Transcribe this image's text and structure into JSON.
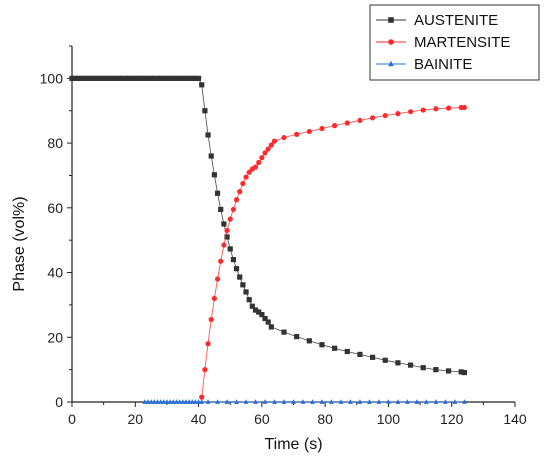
{
  "chart_data": {
    "type": "line",
    "xlabel": "Time (s)",
    "ylabel": "Phase (vol%)",
    "xlim": [
      0,
      140
    ],
    "ylim": [
      0,
      110
    ],
    "xticks": [
      0,
      20,
      40,
      60,
      80,
      100,
      120,
      140
    ],
    "yticks": [
      0,
      20,
      40,
      60,
      80,
      100
    ],
    "grid": false,
    "legend_position": "top-right",
    "series": [
      {
        "name": "AUSTENITE",
        "color": "#333333",
        "marker": "square",
        "x": [
          0,
          1,
          2,
          3,
          4,
          5,
          6,
          7,
          8,
          9,
          10,
          11,
          12,
          13,
          14,
          15,
          16,
          17,
          18,
          19,
          20,
          21,
          22,
          23,
          24,
          25,
          26,
          27,
          28,
          29,
          30,
          31,
          32,
          33,
          34,
          35,
          36,
          37,
          38,
          39,
          40,
          41,
          42,
          43,
          44,
          45,
          46,
          47,
          48,
          49,
          50,
          51,
          52,
          53,
          54,
          55,
          56,
          57,
          58,
          59,
          60,
          61,
          62,
          63,
          67,
          71,
          75,
          79,
          83,
          87,
          91,
          95,
          99,
          103,
          107,
          111,
          115,
          119,
          123,
          124
        ],
        "y": [
          100,
          100,
          100,
          100,
          100,
          100,
          100,
          100,
          100,
          100,
          100,
          100,
          100,
          100,
          100,
          100,
          100,
          100,
          100,
          100,
          100,
          100,
          100,
          100,
          100,
          100,
          100,
          100,
          100,
          100,
          100,
          100,
          100,
          100,
          100,
          100,
          100,
          100,
          100,
          100,
          100,
          98,
          90,
          82.5,
          76,
          70.2,
          64.5,
          59.5,
          55,
          51,
          47.3,
          44,
          41.2,
          38.6,
          36.2,
          34,
          31.6,
          29.6,
          28.4,
          27.8,
          27,
          25.8,
          24.7,
          23.2,
          21.6,
          20.2,
          18.9,
          17.7,
          16.6,
          15.6,
          14.7,
          13.8,
          12.9,
          12.1,
          11.4,
          10.6,
          10,
          9.6,
          9.3,
          9.1
        ],
        "x_alt": [],
        "note": ""
      },
      {
        "name": "MARTENSITE",
        "color": "#ff2a2a",
        "marker": "circle",
        "x": [
          41,
          42,
          43,
          44,
          45,
          46,
          47,
          48,
          49,
          50,
          51,
          52,
          53,
          54,
          55,
          56,
          57,
          58,
          59,
          60,
          61,
          62,
          63,
          64,
          67,
          71,
          75,
          79,
          83,
          87,
          91,
          95,
          99,
          103,
          107,
          111,
          115,
          119,
          123,
          124
        ],
        "y": [
          1.5,
          10,
          18,
          25.5,
          32,
          38,
          43.5,
          48.5,
          53,
          56.5,
          59.5,
          62.5,
          65,
          67.5,
          69.5,
          71,
          72,
          72.6,
          74,
          75.5,
          77,
          78.2,
          79.4,
          80.6,
          81.7,
          82.7,
          83.6,
          84.5,
          85.4,
          86.2,
          87,
          87.8,
          88.5,
          89.1,
          89.7,
          90.2,
          90.6,
          90.8,
          91,
          91
        ],
        "x_alt": [],
        "note": ""
      },
      {
        "name": "BAINITE",
        "color": "#2b6fd6",
        "marker": "triangle",
        "x": [
          23,
          24,
          25,
          26,
          27,
          28,
          29,
          30,
          31,
          32,
          33,
          34,
          35,
          36,
          37,
          38,
          39,
          40,
          41,
          43,
          46,
          49,
          52,
          55,
          58,
          61,
          64,
          67,
          70,
          73,
          76,
          79,
          82,
          85,
          88,
          91,
          94,
          97,
          100,
          103,
          106,
          109,
          112,
          115,
          118,
          121,
          124
        ],
        "y": [
          0,
          0,
          0,
          0,
          0,
          0,
          0,
          0,
          0,
          0,
          0,
          0,
          0,
          0,
          0,
          0,
          0,
          0,
          0,
          0,
          0,
          0,
          0,
          0,
          0,
          0,
          0,
          0,
          0,
          0,
          0,
          0,
          0,
          0,
          0,
          0,
          0,
          0,
          0,
          0,
          0,
          0,
          0,
          0,
          0,
          0,
          0
        ],
        "x_alt": [],
        "note": ""
      }
    ]
  }
}
